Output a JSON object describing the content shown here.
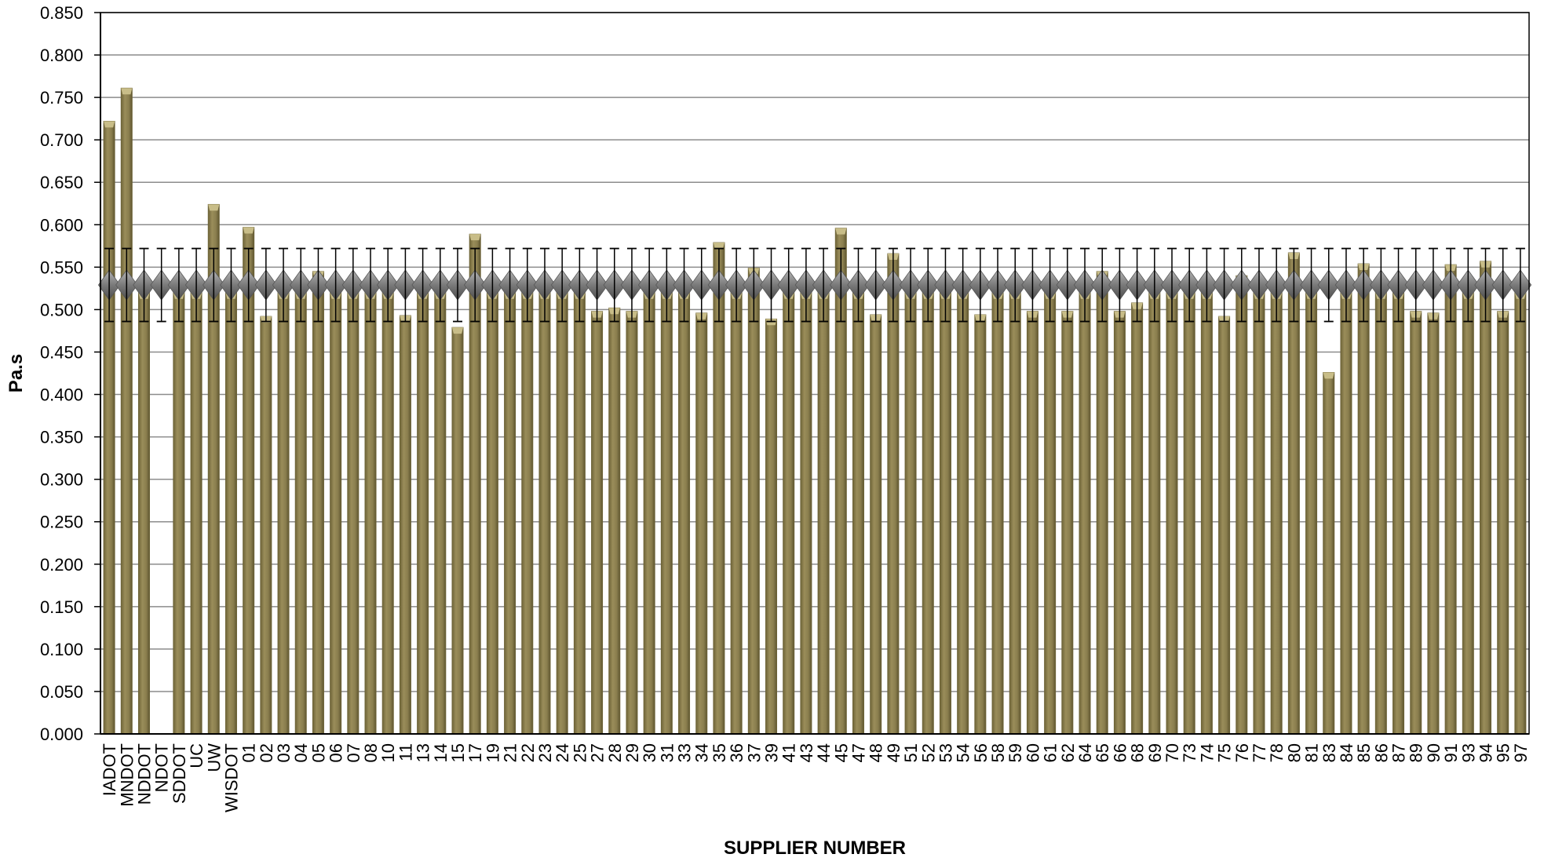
{
  "chart_data": {
    "type": "bar",
    "title": "",
    "xlabel": "SUPPLIER NUMBER",
    "ylabel": "Pa.s",
    "ylim": [
      0,
      0.85
    ],
    "y_ticks": [
      "0.000",
      "0.050",
      "0.100",
      "0.150",
      "0.200",
      "0.250",
      "0.300",
      "0.350",
      "0.400",
      "0.450",
      "0.500",
      "0.550",
      "0.600",
      "0.650",
      "0.700",
      "0.750",
      "0.800",
      "0.850"
    ],
    "grid": true,
    "legend": "none",
    "categories": [
      "IADOT",
      "MNDOT",
      "NDDOT",
      "NDOT",
      "SDDOT",
      "UC",
      "UW",
      "WISDOT",
      "01",
      "02",
      "03",
      "04",
      "05",
      "06",
      "07",
      "08",
      "10",
      "11",
      "13",
      "14",
      "15",
      "17",
      "19",
      "21",
      "22",
      "23",
      "24",
      "25",
      "27",
      "28",
      "29",
      "30",
      "31",
      "33",
      "34",
      "35",
      "36",
      "37",
      "39",
      "41",
      "43",
      "44",
      "45",
      "47",
      "48",
      "49",
      "51",
      "52",
      "53",
      "54",
      "56",
      "58",
      "59",
      "60",
      "61",
      "62",
      "64",
      "65",
      "66",
      "68",
      "69",
      "70",
      "73",
      "74",
      "75",
      "76",
      "77",
      "78",
      "80",
      "81",
      "83",
      "84",
      "85",
      "86",
      "87",
      "89",
      "90",
      "91",
      "93",
      "94",
      "95",
      "97"
    ],
    "values": [
      0.722,
      0.761,
      0.52,
      null,
      0.52,
      0.52,
      0.624,
      0.52,
      0.597,
      0.492,
      0.52,
      0.52,
      0.545,
      0.52,
      0.52,
      0.52,
      0.52,
      0.493,
      0.52,
      0.52,
      0.479,
      0.589,
      0.52,
      0.52,
      0.52,
      0.52,
      0.52,
      0.52,
      0.498,
      0.502,
      0.498,
      0.52,
      0.52,
      0.52,
      0.496,
      0.579,
      0.52,
      0.549,
      0.489,
      0.52,
      0.52,
      0.52,
      0.596,
      0.52,
      0.494,
      0.566,
      0.52,
      0.52,
      0.52,
      0.52,
      0.494,
      0.52,
      0.52,
      0.498,
      0.52,
      0.498,
      0.52,
      0.545,
      0.498,
      0.508,
      0.52,
      0.52,
      0.52,
      0.52,
      0.492,
      0.54,
      0.52,
      0.52,
      0.567,
      0.52,
      0.426,
      0.52,
      0.554,
      0.52,
      0.52,
      0.498,
      0.496,
      0.553,
      0.52,
      0.557,
      0.498,
      0.52
    ],
    "error_bars": {
      "center": 0.529,
      "upper": 0.572,
      "lower": 0.486
    },
    "colors": {
      "bar": "#8c8050",
      "bar_highlight": "#c8bd88",
      "bar_edge": "#6e6438",
      "marker": "#8c8c8c",
      "error_bar": "#000000",
      "grid": "#8c8c8c"
    }
  }
}
